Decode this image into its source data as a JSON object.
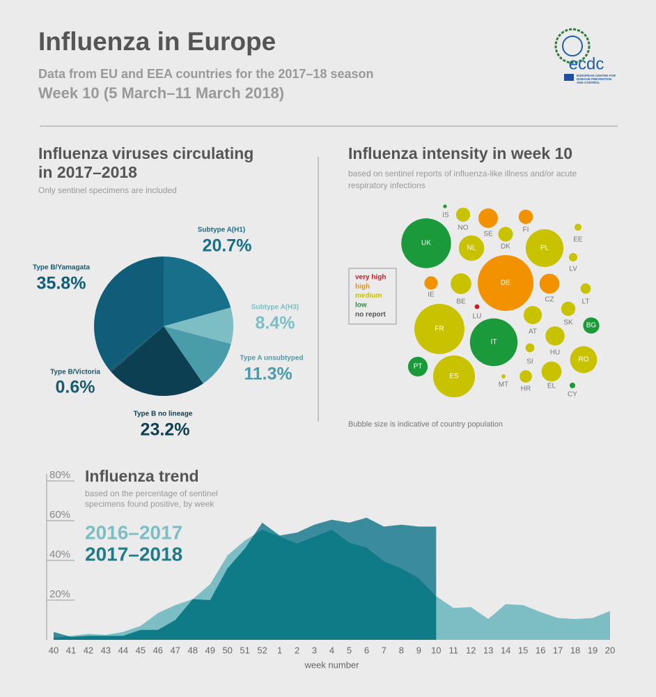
{
  "header": {
    "title": "Influenza in Europe",
    "subtitle": "Data from EU and EEA countries for the 2017–18 season",
    "week": "Week 10 (5 March–11 March 2018)",
    "logo": {
      "name": "ecdc",
      "org": [
        "EUROPEAN CENTRE FOR",
        "DISEASE PREVENTION",
        "AND CONTROL"
      ]
    }
  },
  "chart_data": [
    {
      "type": "pie",
      "title": [
        "Influenza viruses circulating",
        "in 2017–2018"
      ],
      "subtitle": "Only sentinel specimens are included",
      "categories": [
        "Subtype A(H1)",
        "Subtype A(H3)",
        "Type A unsubtyped",
        "Type B no lineage",
        "Type B/Victoria",
        "Type B/Yamagata"
      ],
      "values": [
        20.7,
        8.4,
        11.3,
        23.2,
        0.6,
        35.8
      ],
      "value_labels": [
        "20.7%",
        "8.4%",
        "11.3%",
        "23.2%",
        "0.6%",
        "35.8%"
      ],
      "colors": [
        "#176f8a",
        "#7dbec5",
        "#4b9cab",
        "#0c3f52",
        "#1a5a6e",
        "#0f5d78"
      ]
    },
    {
      "type": "bubble",
      "title": "Influenza intensity in week 10",
      "subtitle": [
        "based on sentinel reports of influenza-like illness and/or acute",
        "respiratory infections"
      ],
      "legend": {
        "categories": [
          "very high",
          "high",
          "medium",
          "low",
          "no report"
        ],
        "colors": [
          "#d7191c",
          "#f39200",
          "#c9c200",
          "#1a9a3a",
          "#555555"
        ]
      },
      "countries": [
        "IS",
        "NO",
        "SE",
        "FI",
        "EE",
        "UK",
        "NL",
        "DK",
        "PL",
        "LV",
        "DE",
        "IE",
        "BE",
        "CZ",
        "LT",
        "LU",
        "FR",
        "AT",
        "SK",
        "BG",
        "IT",
        "HU",
        "SI",
        "RO",
        "PT",
        "ES",
        "MT",
        "HR",
        "EL",
        "CY"
      ],
      "intensity": [
        "low",
        "medium",
        "high",
        "high",
        "medium",
        "low",
        "medium",
        "medium",
        "medium",
        "medium",
        "high",
        "high",
        "medium",
        "high",
        "medium",
        "very high",
        "medium",
        "medium",
        "medium",
        "low",
        "low",
        "medium",
        "medium",
        "medium",
        "low",
        "medium",
        "medium",
        "medium",
        "medium",
        "low"
      ],
      "population": [
        0.35,
        5.3,
        10.1,
        5.5,
        1.3,
        66,
        17.2,
        5.8,
        38,
        1.9,
        82.8,
        4.8,
        11.4,
        10.6,
        2.8,
        0.6,
        67,
        8.8,
        5.4,
        7,
        60.5,
        9.8,
        2.1,
        19.5,
        10.3,
        46.7,
        0.46,
        4.1,
        10.7,
        0.86
      ],
      "note": "Bubble size is indicative of country population"
    },
    {
      "type": "area",
      "title": "Influenza trend",
      "subtitle": [
        "based on the percentage of sentinel",
        "specimens found positive, by week"
      ],
      "x_label": "week number",
      "categories": [
        40,
        41,
        42,
        43,
        44,
        45,
        46,
        47,
        48,
        49,
        50,
        51,
        52,
        1,
        2,
        3,
        4,
        5,
        6,
        7,
        8,
        9,
        10,
        11,
        12,
        13,
        14,
        15,
        16,
        17,
        18,
        19,
        20
      ],
      "series": [
        {
          "name": "2016–2017",
          "color": "#7dbec5",
          "values": [
            1,
            2,
            3,
            2.5,
            4,
            7,
            13.5,
            17.5,
            20.5,
            28,
            42.5,
            50,
            55.5,
            52,
            48.5,
            52,
            55.5,
            49,
            46.5,
            39.5,
            36,
            31,
            22,
            16,
            16.5,
            10.5,
            18,
            17.5,
            14,
            11,
            10.5,
            11,
            14.5
          ]
        },
        {
          "name": "2017–2018",
          "color": "#3a8b9c",
          "values": [
            4,
            1.5,
            2,
            2,
            2,
            5,
            5,
            10,
            20.5,
            20,
            36,
            46,
            59,
            52.5,
            54,
            58,
            60.5,
            59,
            61.5,
            57,
            58,
            57,
            57,
            null,
            null,
            null,
            null,
            null,
            null,
            null,
            null,
            null,
            null
          ]
        }
      ],
      "ylim": [
        0,
        80
      ],
      "yticks": [
        {
          "value": 20,
          "label": "20%"
        },
        {
          "value": 40,
          "label": "40%"
        },
        {
          "value": 60,
          "label": "60%"
        },
        {
          "value": 80,
          "label": "80%"
        }
      ]
    }
  ]
}
